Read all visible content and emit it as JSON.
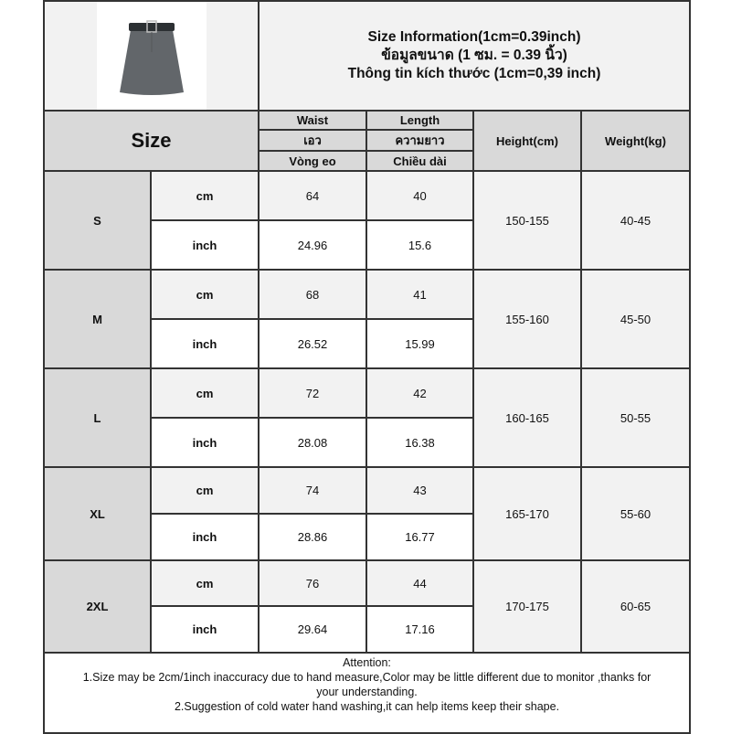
{
  "header": {
    "title_en": "Size Information(1cm=0.39inch)",
    "title_th": "ข้อมูลขนาด (1 ซม. = 0.39 นิ้ว)",
    "title_vi": "Thông tin kích thước (1cm=0,39 inch)"
  },
  "columns": {
    "size": "Size",
    "waist": [
      "Waist",
      "เอว",
      "Vòng eo"
    ],
    "length": [
      "Length",
      "ความยาว",
      "Chiều dài"
    ],
    "height": "Height(cm)",
    "weight": "Weight(kg)"
  },
  "units": {
    "cm": "cm",
    "inch": "inch"
  },
  "rows": [
    {
      "size": "S",
      "waist_cm": "64",
      "length_cm": "40",
      "waist_in": "24.96",
      "length_in": "15.6",
      "height": "150-155",
      "weight": "40-45"
    },
    {
      "size": "M",
      "waist_cm": "68",
      "length_cm": "41",
      "waist_in": "26.52",
      "length_in": "15.99",
      "height": "155-160",
      "weight": "45-50"
    },
    {
      "size": "L",
      "waist_cm": "72",
      "length_cm": "42",
      "waist_in": "28.08",
      "length_in": "16.38",
      "height": "160-165",
      "weight": "50-55"
    },
    {
      "size": "XL",
      "waist_cm": "74",
      "length_cm": "43",
      "waist_in": "28.86",
      "length_in": "16.77",
      "height": "165-170",
      "weight": "55-60"
    },
    {
      "size": "2XL",
      "waist_cm": "76",
      "length_cm": "44",
      "waist_in": "29.64",
      "length_in": "17.16",
      "height": "170-175",
      "weight": "60-65"
    }
  ],
  "attention": {
    "title": "Attention:",
    "line1": "1.Size may be 2cm/1inch inaccuracy due to hand measure,Color may be little different due to monitor ,thanks for your understanding.",
    "line2": "2.Suggestion of cold water hand washing,it can help items keep their shape."
  },
  "product_image": "grey-mini-skirt-with-belt"
}
